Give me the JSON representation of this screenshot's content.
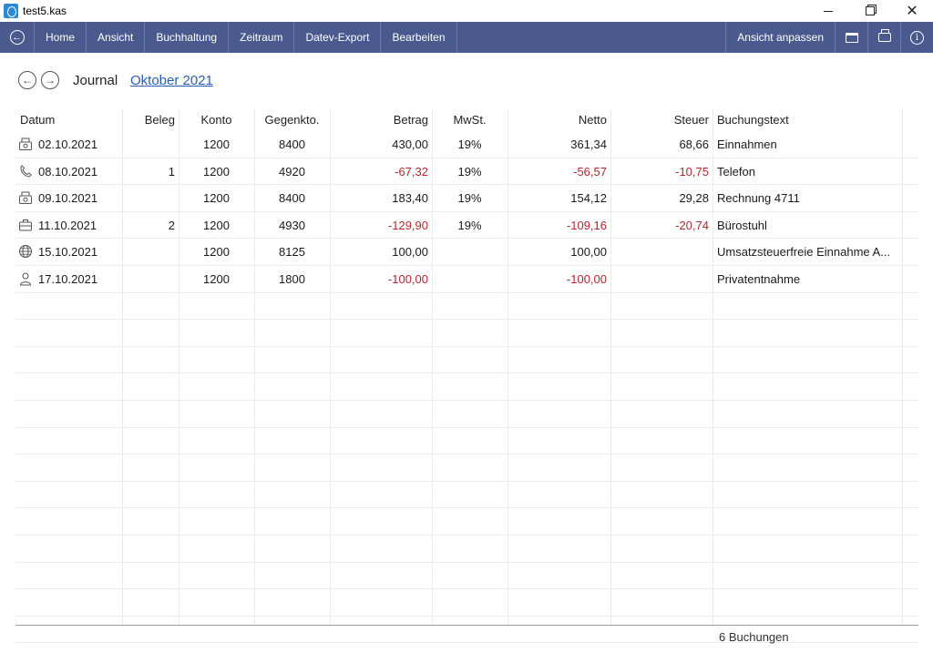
{
  "window": {
    "title": "test5.kas"
  },
  "toolbar": {
    "items": [
      "Home",
      "Ansicht",
      "Buchhaltung",
      "Zeitraum",
      "Datev-Export",
      "Bearbeiten"
    ],
    "right_label": "Ansicht anpassen",
    "right_icons": [
      "window-icon",
      "printer-icon",
      "info-icon"
    ]
  },
  "journal": {
    "label": "Journal",
    "period": "Oktober 2021"
  },
  "table": {
    "columns": [
      "Datum",
      "Beleg",
      "Konto",
      "Gegenkto.",
      "Betrag",
      "MwSt.",
      "Netto",
      "Steuer",
      "Buchungstext"
    ],
    "rows": [
      {
        "icon": "cash-register-icon",
        "datum": "02.10.2021",
        "beleg": "",
        "konto": "1200",
        "gegenkto": "8400",
        "betrag": "430,00",
        "mwst": "19%",
        "netto": "361,34",
        "steuer": "68,66",
        "text": "Einnahmen",
        "negative": false
      },
      {
        "icon": "phone-icon",
        "datum": "08.10.2021",
        "beleg": "1",
        "konto": "1200",
        "gegenkto": "4920",
        "betrag": "-67,32",
        "mwst": "19%",
        "netto": "-56,57",
        "steuer": "-10,75",
        "text": "Telefon",
        "negative": true
      },
      {
        "icon": "cash-register-icon",
        "datum": "09.10.2021",
        "beleg": "",
        "konto": "1200",
        "gegenkto": "8400",
        "betrag": "183,40",
        "mwst": "19%",
        "netto": "154,12",
        "steuer": "29,28",
        "text": "Rechnung 4711",
        "negative": false
      },
      {
        "icon": "briefcase-icon",
        "datum": "11.10.2021",
        "beleg": "2",
        "konto": "1200",
        "gegenkto": "4930",
        "betrag": "-129,90",
        "mwst": "19%",
        "netto": "-109,16",
        "steuer": "-20,74",
        "text": "Bürostuhl",
        "negative": true
      },
      {
        "icon": "globe-icon",
        "datum": "15.10.2021",
        "beleg": "",
        "konto": "1200",
        "gegenkto": "8125",
        "betrag": "100,00",
        "mwst": "",
        "netto": "100,00",
        "steuer": "",
        "text": "Umsatzsteuerfreie Einnahme A...",
        "negative": false
      },
      {
        "icon": "person-icon",
        "datum": "17.10.2021",
        "beleg": "",
        "konto": "1200",
        "gegenkto": "1800",
        "betrag": "-100,00",
        "mwst": "",
        "netto": "-100,00",
        "steuer": "",
        "text": "Privatentnahme",
        "negative": true
      }
    ]
  },
  "footer": {
    "count": "6 Buchungen"
  },
  "colors": {
    "toolbar": "#4a5a8e",
    "negative": "#b3262e",
    "link": "#2a5db0"
  }
}
